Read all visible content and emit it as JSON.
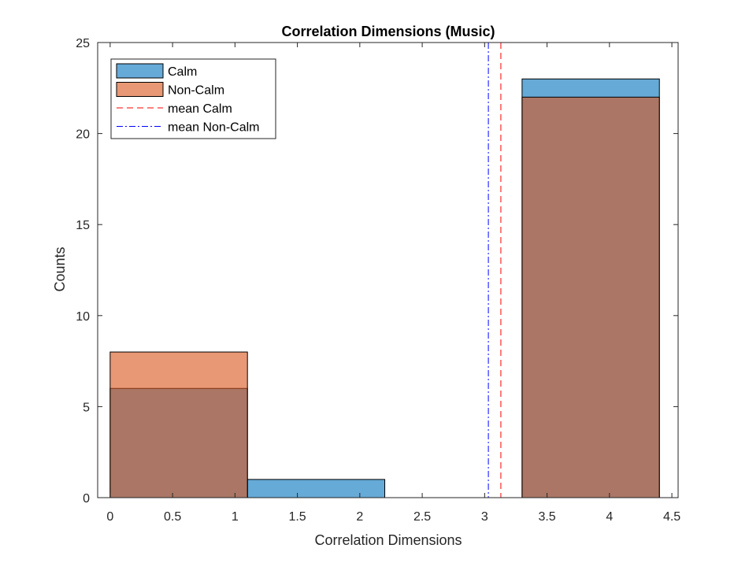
{
  "chart_data": {
    "type": "bar",
    "title": "Correlation Dimensions (Music)",
    "xlabel": "Correlation Dimensions",
    "ylabel": "Counts",
    "xlim": [
      -0.1,
      4.55
    ],
    "ylim": [
      0,
      25
    ],
    "xticks": [
      0,
      0.5,
      1,
      1.5,
      2,
      2.5,
      3,
      3.5,
      4,
      4.5
    ],
    "xtick_labels": [
      "0",
      "0.5",
      "1",
      "1.5",
      "2",
      "2.5",
      "3",
      "3.5",
      "4",
      "4.5"
    ],
    "yticks": [
      0,
      5,
      10,
      15,
      20,
      25
    ],
    "ytick_labels": [
      "0",
      "5",
      "10",
      "15",
      "20",
      "25"
    ],
    "bin_edges": [
      0,
      1.1,
      2.2,
      3.3,
      4.4
    ],
    "series": [
      {
        "name": "Calm",
        "counts": [
          6,
          1,
          0,
          23
        ],
        "color": "#0072BD"
      },
      {
        "name": "Non-Calm",
        "counts": [
          8,
          0,
          0,
          22
        ],
        "color": "#D95319"
      }
    ],
    "bar_face_alpha": 0.6,
    "mean_lines": [
      {
        "name": "mean Calm",
        "x": 3.13,
        "color": "#FF0000",
        "style": "dashed"
      },
      {
        "name": "mean Non-Calm",
        "x": 3.03,
        "color": "#0000FF",
        "style": "dash-dot"
      }
    ],
    "legend_position": "top-left",
    "grid": false
  }
}
